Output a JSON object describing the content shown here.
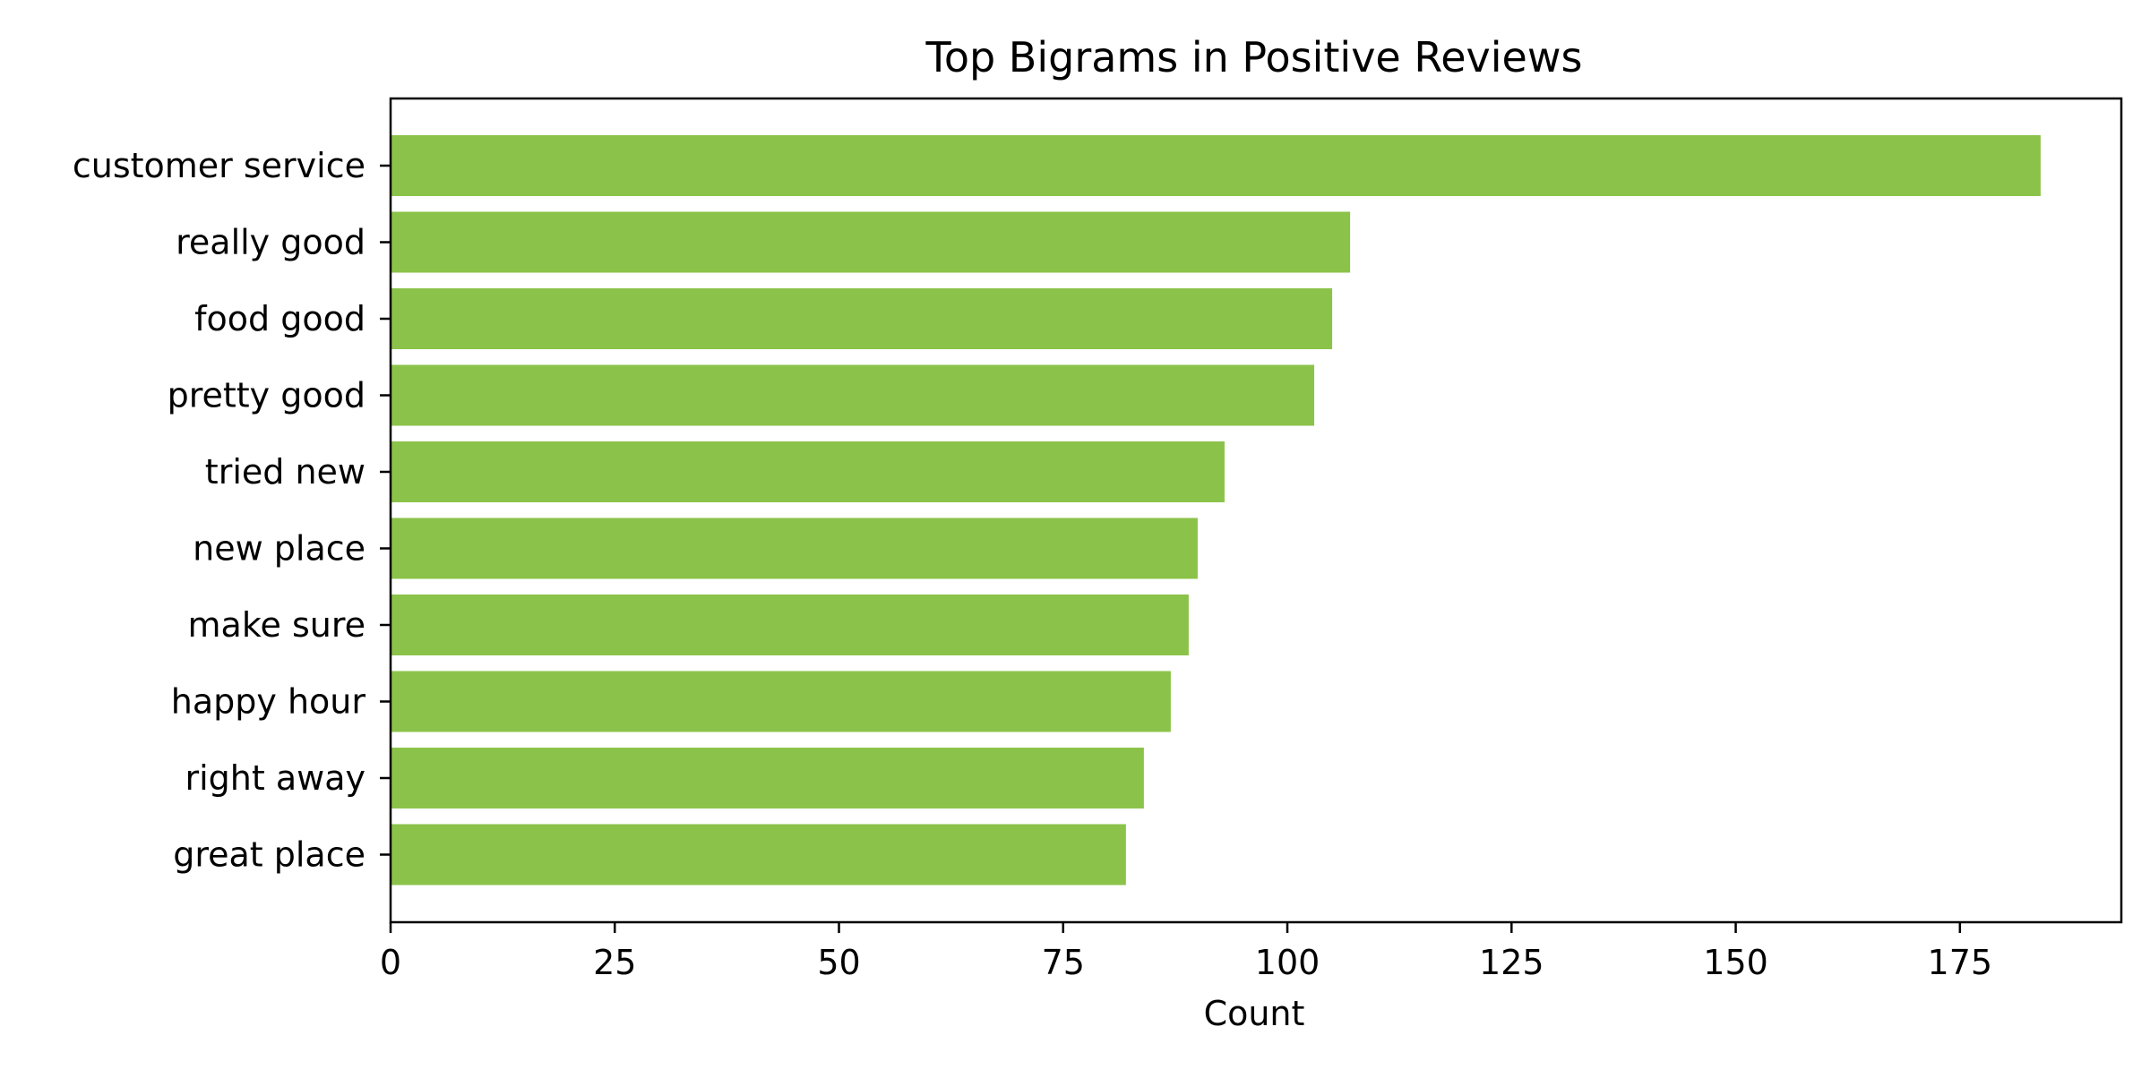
{
  "chart_data": {
    "type": "bar",
    "orientation": "horizontal",
    "title": "Top Bigrams in Positive Reviews",
    "xlabel": "Count",
    "ylabel": "",
    "categories": [
      "customer service",
      "really good",
      "food good",
      "pretty good",
      "tried new",
      "new place",
      "make sure",
      "happy hour",
      "right away",
      "great place"
    ],
    "values": [
      184,
      107,
      105,
      103,
      93,
      90,
      89,
      87,
      84,
      82
    ],
    "xlim": [
      0,
      193
    ],
    "xticks": [
      0,
      25,
      50,
      75,
      100,
      125,
      150,
      175
    ],
    "grid": false,
    "legend": "none",
    "bar_color": "#8bc34a",
    "axis_color": "#000000"
  }
}
